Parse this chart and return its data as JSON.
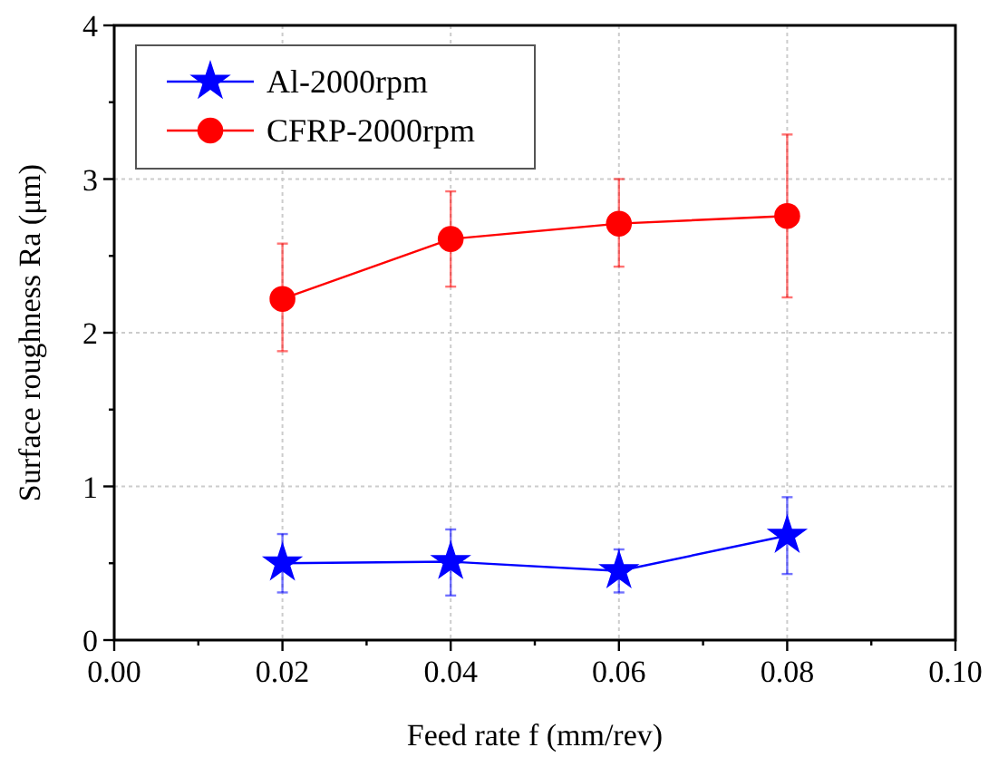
{
  "chart_data": {
    "type": "line",
    "xlabel": "Feed rate f (mm/rev)",
    "ylabel": "Surface roughness Ra (μm)",
    "xlim": [
      0,
      0.1
    ],
    "ylim": [
      0,
      4
    ],
    "xticks": [
      {
        "value": 0,
        "label": "0.00"
      },
      {
        "value": 0.01,
        "label": null
      },
      {
        "value": 0.02,
        "label": "0.02"
      },
      {
        "value": 0.03,
        "label": null
      },
      {
        "value": 0.04,
        "label": "0.04"
      },
      {
        "value": 0.05,
        "label": null
      },
      {
        "value": 0.06,
        "label": "0.06"
      },
      {
        "value": 0.07,
        "label": null
      },
      {
        "value": 0.08,
        "label": "0.08"
      },
      {
        "value": 0.09,
        "label": null
      },
      {
        "value": 0.1,
        "label": "0.10"
      }
    ],
    "yticks": [
      0,
      {
        "value": 0.5,
        "label": null
      },
      1,
      {
        "value": 1.5,
        "label": null
      },
      2,
      {
        "value": 2.5,
        "label": null
      },
      3,
      {
        "value": 3.5,
        "label": null
      },
      4
    ],
    "x": [
      0.02,
      0.04,
      0.06,
      0.08
    ],
    "grid": true,
    "legend": "top left",
    "series": [
      {
        "name": "Al-2000rpm",
        "color": "#0000ff",
        "marker": "star",
        "values": [
          0.5,
          0.51,
          0.45,
          0.68
        ],
        "errors": [
          [
            0.31,
            0.69
          ],
          [
            0.29,
            0.72
          ],
          [
            0.31,
            0.59
          ],
          [
            0.43,
            0.93
          ]
        ]
      },
      {
        "name": "CFRP-2000rpm",
        "color": "#ff0000",
        "marker": "circle",
        "values": [
          2.22,
          2.61,
          2.71,
          2.76
        ],
        "errors": [
          [
            1.88,
            2.58
          ],
          [
            2.3,
            2.92
          ],
          [
            2.43,
            3.0
          ],
          [
            2.23,
            3.29
          ]
        ]
      }
    ]
  }
}
